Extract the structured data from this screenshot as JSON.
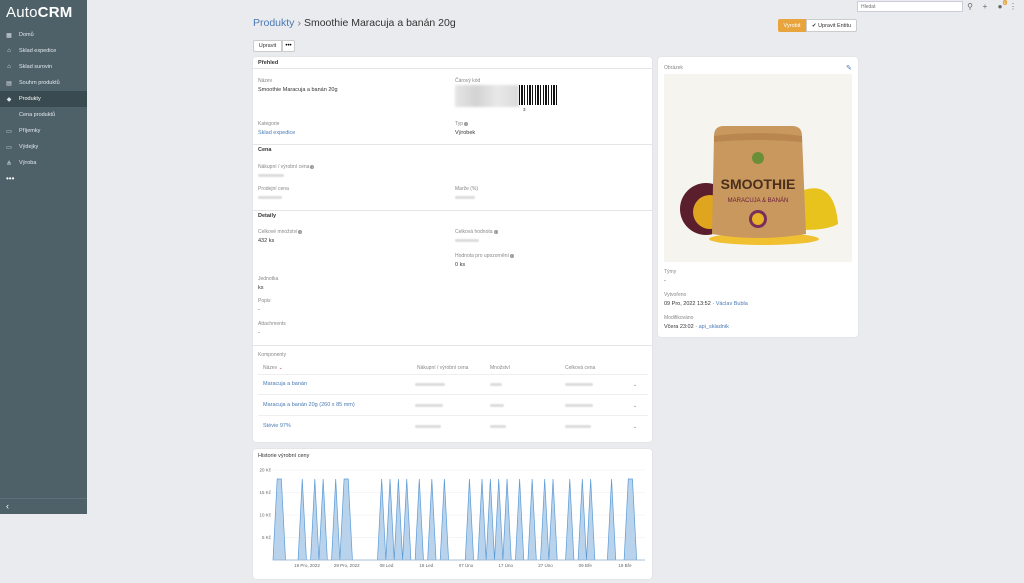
{
  "app": {
    "logo_light": "Auto",
    "logo_bold": "CRM"
  },
  "sidebar": {
    "items": [
      {
        "label": "Domů",
        "icon": "grid-icon"
      },
      {
        "label": "Sklad expedice",
        "icon": "warehouse-icon"
      },
      {
        "label": "Sklad surovin",
        "icon": "warehouse-icon"
      },
      {
        "label": "Souhrn produktů",
        "icon": "chart-icon"
      },
      {
        "label": "Produkty",
        "icon": "box-icon",
        "active": true
      },
      {
        "label": "Cena produktů",
        "icon": "",
        "sub": true
      },
      {
        "label": "Příjemky",
        "icon": "inbox-icon"
      },
      {
        "label": "Výdejky",
        "icon": "outbox-icon"
      },
      {
        "label": "Výroba",
        "icon": "sitemap-icon"
      }
    ],
    "more": "•••",
    "collapse": "‹"
  },
  "topbar": {
    "search_placeholder": "Hledat",
    "notification_count": "1"
  },
  "header": {
    "breadcrumb": "Produkty",
    "separator": "›",
    "title": "Smoothie Maracuja a banán 20g",
    "btn_vyrobit": "Vyrobit",
    "btn_upravit_entitu": "Upravit Entitu",
    "btn_upravit": "Upravit",
    "btn_more": "•••"
  },
  "prehled": {
    "heading": "Přehled",
    "nazev_label": "Název",
    "nazev_value": "Smoothie Maracuja a banán 20g",
    "carovy_kod_label": "Čárový kód",
    "barcode_suffix": "3",
    "kategorie_label": "Kategorie",
    "kategorie_value": "Sklad expedice",
    "typ_label": "Typ",
    "typ_value": "Výrobek"
  },
  "cena": {
    "heading": "Cena",
    "nakupni_label": "Nákupní / výrobní cena",
    "prodejni_label": "Prodejní cena",
    "marze_label": "Marže (%)"
  },
  "detaily": {
    "heading": "Detaily",
    "celkove_mnozstvi_label": "Celkové množství",
    "celkove_mnozstvi_value": "432 ks",
    "celkova_hodnota_label": "Celková hodnota",
    "hodnota_upozorneni_label": "Hodnota pro upozornění",
    "hodnota_upozorneni_value": "0 ks",
    "jednotka_label": "Jednotka",
    "jednotka_value": "ks",
    "popis_label": "Popis",
    "popis_value": "-",
    "attachments_label": "Attachments",
    "attachments_value": "-"
  },
  "komponenty": {
    "heading": "Komponenty",
    "columns": [
      "Název",
      "Nákupní / výrobní cena",
      "Množství",
      "Celková cena"
    ],
    "rows": [
      {
        "name": "Maracuja a banán"
      },
      {
        "name": "Maracuja a banán 20g (260 x 85 mm)"
      },
      {
        "name": "Stévie 97%"
      }
    ]
  },
  "side": {
    "obrazek_label": "Obrázek",
    "product_brand": "SMOOTHIE",
    "product_flavor": "MARACUJA & BANÁN",
    "tymy_label": "Týmy",
    "tymy_value": "-",
    "vytvoreno_label": "Vytvořeno",
    "vytvoreno_date": "09 Pro, 2022 13:52",
    "vytvoreno_sep": " · ",
    "vytvoreno_user": "Václav Bubla",
    "modifikovano_label": "Modifikováno",
    "modifikovano_date": "Včera 23:02",
    "modifikovano_sep": " · ",
    "modifikovano_user": "api_skladnik"
  },
  "chart_data": {
    "type": "area",
    "title": "Historie výrobní ceny",
    "ylim": [
      0,
      20
    ],
    "yticks": [
      "20 Kč",
      "15 Kč",
      "10 Kč",
      "5 Kč"
    ],
    "ytick_values": [
      20,
      15,
      10,
      5
    ],
    "xticks": [
      "19 Pro, 2022",
      "29 Pro, 2022",
      "08 Led",
      "18 Led",
      "07 Úno",
      "17 Úno",
      "27 Úno",
      "09 Bře",
      "19 Bře"
    ],
    "values": [
      0,
      18,
      18,
      0,
      0,
      0,
      0,
      18,
      0,
      0,
      18,
      0,
      18,
      0,
      0,
      18,
      0,
      18,
      18,
      0,
      0,
      0,
      0,
      0,
      0,
      0,
      18,
      0,
      18,
      0,
      18,
      0,
      18,
      0,
      0,
      18,
      0,
      0,
      18,
      0,
      0,
      18,
      0,
      0,
      0,
      0,
      0,
      18,
      0,
      0,
      18,
      0,
      18,
      0,
      18,
      0,
      18,
      0,
      0,
      18,
      0,
      0,
      18,
      0,
      0,
      18,
      0,
      18,
      0,
      0,
      0,
      18,
      0,
      0,
      18,
      0,
      18,
      0,
      0,
      0,
      0,
      18,
      0,
      0,
      0,
      18,
      18,
      0,
      0,
      0
    ]
  }
}
